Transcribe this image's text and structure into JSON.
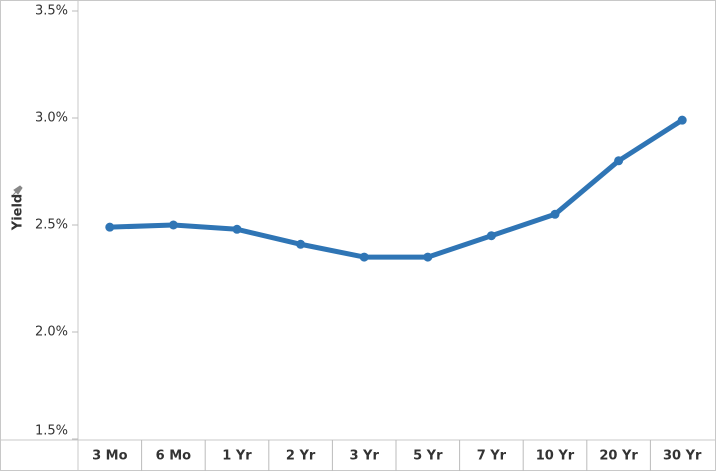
{
  "chart_data": {
    "type": "line",
    "y_label": "Yield",
    "categories": [
      "3 Mo",
      "6 Mo",
      "1 Yr",
      "2 Yr",
      "3 Yr",
      "5 Yr",
      "7 Yr",
      "10 Yr",
      "20 Yr",
      "30 Yr"
    ],
    "values": [
      2.49,
      2.5,
      2.48,
      2.41,
      2.35,
      2.35,
      2.45,
      2.55,
      2.8,
      2.99
    ],
    "color": "#2f75b5",
    "ylim": [
      1.5,
      3.5
    ],
    "yticks": [
      {
        "value": 1.5,
        "label": "1.5%"
      },
      {
        "value": 2.0,
        "label": "2.0%"
      },
      {
        "value": 2.5,
        "label": "2.5%"
      },
      {
        "value": 3.0,
        "label": "3.0%"
      },
      {
        "value": 3.5,
        "label": "3.5%"
      }
    ],
    "grid": false
  }
}
